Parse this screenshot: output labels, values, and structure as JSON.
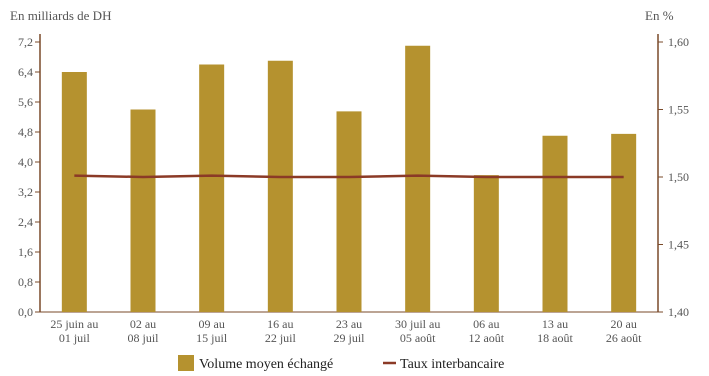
{
  "chart_data": {
    "type": "bar",
    "left_axis_title": "En milliards de DH",
    "right_axis_title": "En %",
    "categories": [
      [
        "25 juin au",
        "01 juil"
      ],
      [
        "02 au",
        "08 juil"
      ],
      [
        "09 au",
        "15 juil"
      ],
      [
        "16 au",
        "22 juil"
      ],
      [
        "23 au",
        "29 juil"
      ],
      [
        "30 juil au",
        "05 août"
      ],
      [
        "06 au",
        "12 août"
      ],
      [
        "13 au",
        "18 août"
      ],
      [
        "20 au",
        "26 août"
      ]
    ],
    "series": [
      {
        "name": "Volume moyen échangé",
        "kind": "bar",
        "axis": "left",
        "color": "#B5922F",
        "values": [
          6.4,
          5.4,
          6.6,
          6.7,
          5.35,
          7.1,
          3.65,
          4.7,
          4.75
        ]
      },
      {
        "name": "Taux interbancaire",
        "kind": "line",
        "axis": "right",
        "color": "#8B3A26",
        "values": [
          1.501,
          1.5,
          1.501,
          1.5,
          1.5,
          1.501,
          1.5,
          1.5,
          1.5
        ]
      }
    ],
    "left_axis": {
      "ylim": [
        0,
        7.2
      ],
      "ticks": [
        "0,0",
        "0,8",
        "1,6",
        "2,4",
        "3,2",
        "4,0",
        "4,8",
        "5,6",
        "6,4",
        "7,2"
      ],
      "values": [
        0,
        0.8,
        1.6,
        2.4,
        3.2,
        4.0,
        4.8,
        5.6,
        6.4,
        7.2
      ]
    },
    "right_axis": {
      "ylim": [
        1.4,
        1.6
      ],
      "ticks": [
        "1,40",
        "1,45",
        "1,50",
        "1,55",
        "1,60"
      ],
      "values": [
        1.4,
        1.45,
        1.5,
        1.55,
        1.6
      ]
    },
    "legend_position": "bottom-center",
    "grid": false,
    "axis_color": "#7A4A2A"
  }
}
